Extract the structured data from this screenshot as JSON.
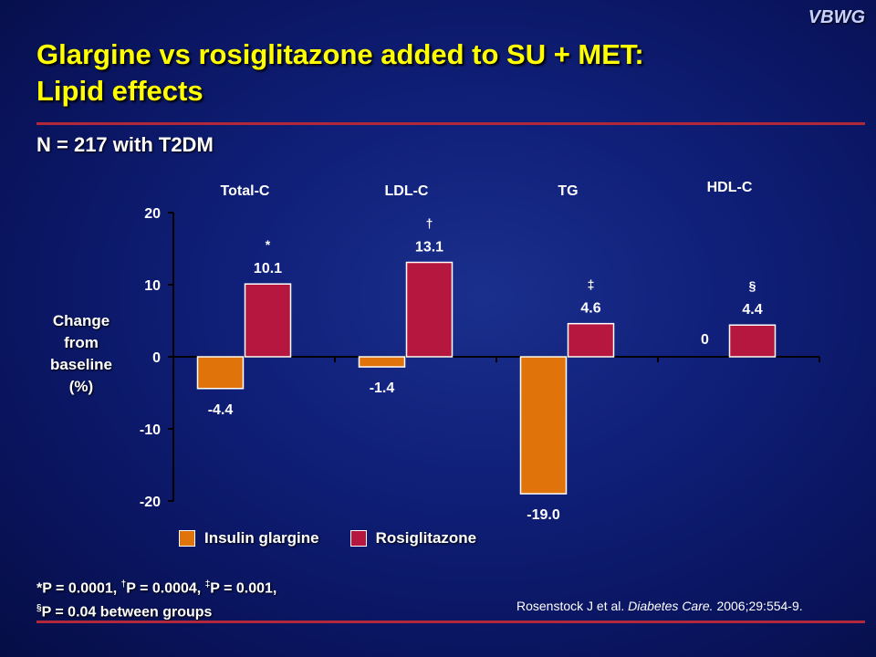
{
  "brand": "VBWG",
  "title_line1": "Glargine vs rosiglitazone added to SU + MET:",
  "title_line2": "Lipid effects",
  "subtitle": "N = 217 with T2DM",
  "ylabel_lines": [
    "Change",
    "from",
    "baseline",
    "(%)"
  ],
  "colors": {
    "glargine": "#e0740a",
    "rosiglitazone": "#b5173f",
    "title": "#ffff00",
    "rule": "#b0283a"
  },
  "chart_data": {
    "type": "bar",
    "categories": [
      "Total-C",
      "LDL-C",
      "TG",
      "HDL-C"
    ],
    "series": [
      {
        "name": "Insulin glargine",
        "values": [
          -4.4,
          -1.4,
          -19.0,
          0
        ],
        "labels": [
          "-4.4",
          "-1.4",
          "-19.0",
          "0"
        ]
      },
      {
        "name": "Rosiglitazone",
        "values": [
          10.1,
          13.1,
          4.6,
          4.4
        ],
        "labels": [
          "10.1",
          "13.1",
          "4.6",
          "4.4"
        ]
      }
    ],
    "significance_marks": [
      "*",
      "†",
      "‡",
      "§"
    ],
    "ylim": [
      -20,
      20
    ],
    "yticks": [
      20,
      10,
      0,
      -10,
      -20
    ],
    "xlabel": "",
    "ylabel": "Change from baseline (%)",
    "grid": false,
    "legend_position": "bottom-left"
  },
  "legend": {
    "glargine": "Insulin glargine",
    "rosiglitazone": "Rosiglitazone"
  },
  "footnote": {
    "line1_a": "*P = 0.0001, ",
    "sup1": "†",
    "line1_b": "P = 0.0004, ",
    "sup2": "‡",
    "line1_c": "P = 0.001,",
    "sup3": "§",
    "line2": "P = 0.04 between groups"
  },
  "citation": {
    "authors": "Rosenstock J et al. ",
    "journal": "Diabetes Care.",
    "details": " 2006;29:554-9."
  }
}
